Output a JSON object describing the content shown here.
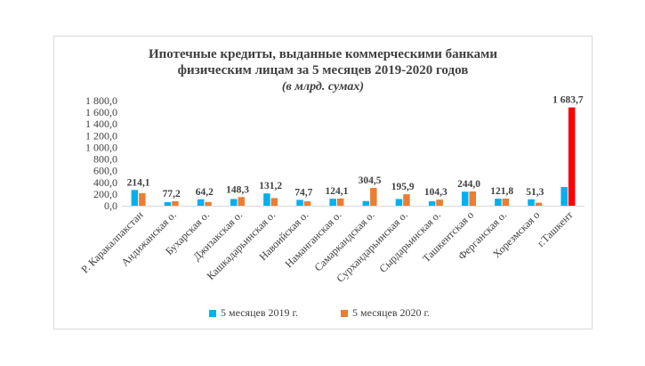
{
  "title": {
    "line1": "Ипотечные кредиты, выданные коммерческими банками",
    "line2": "физическим лицам за 5 месяцев 2019-2020 годов",
    "line3": "(в млрд. сумах)"
  },
  "chart_data": {
    "type": "bar",
    "categories": [
      "Р. Каракалпакстан",
      "Андижанская о.",
      "Бухарская о.",
      "Джизакская о.",
      "Кашкадарьинская о.",
      "Навоийская о.",
      "Наманганская о.",
      "Самаркандская о.",
      "Сурхандарьинская о.",
      "Сырдарьинская о.",
      "Ташкентская о",
      "Ферганская о.",
      "Хорезмская о",
      "г.Ташкент"
    ],
    "series": [
      {
        "name": "5 месяцев 2019 г.",
        "color": "#00b0f0",
        "values": [
          270,
          60,
          110,
          115,
          210,
          100,
          120,
          80,
          115,
          75,
          240,
          120,
          110,
          320
        ]
      },
      {
        "name": "5 месяцев 2020 г.",
        "color": "#ed7d31",
        "values": [
          214.1,
          77.2,
          64.2,
          148.3,
          131.2,
          74.7,
          124.1,
          304.5,
          195.9,
          104.3,
          244.0,
          121.8,
          51.3,
          1683.7
        ]
      }
    ],
    "data_labels": [
      "214,1",
      "77,2",
      "64,2",
      "148,3",
      "131,2",
      "74,7",
      "124,1",
      "304,5",
      "195,9",
      "104,3",
      "244,0",
      "121,8",
      "51,3",
      "1 683,7"
    ],
    "highlight": {
      "index": 13,
      "series": 1,
      "color": "#ff0000"
    },
    "yticks": [
      "0,0",
      "200,0",
      "400,0",
      "600,0",
      "800,0",
      "1 000,0",
      "1 200,0",
      "1 400,0",
      "1 600,0",
      "1 800,0"
    ],
    "ylim": [
      0,
      1800
    ],
    "grid": false,
    "legend": "bottom"
  }
}
